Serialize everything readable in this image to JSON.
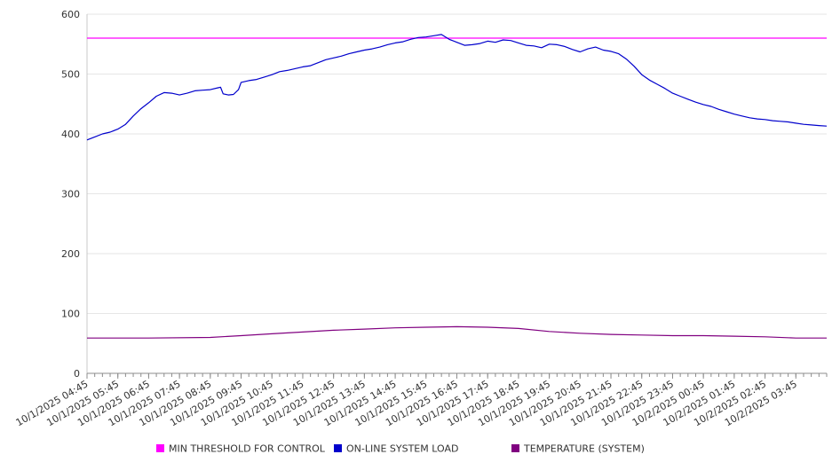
{
  "chart_data": {
    "type": "line",
    "title": "",
    "xlabel": "",
    "ylabel": "",
    "ylim": [
      0,
      600
    ],
    "y_ticks": [
      "0",
      "100",
      "200",
      "300",
      "400",
      "500",
      "600"
    ],
    "x_ticks": [
      "10/1/2025 04:45",
      "10/1/2025 05:45",
      "10/1/2025 06:45",
      "10/1/2025 07:45",
      "10/1/2025 08:45",
      "10/1/2025 09:45",
      "10/1/2025 10:45",
      "10/1/2025 11:45",
      "10/1/2025 12:45",
      "10/1/2025 13:45",
      "10/1/2025 14:45",
      "10/1/2025 15:45",
      "10/1/2025 16:45",
      "10/1/2025 17:45",
      "10/1/2025 18:45",
      "10/1/2025 19:45",
      "10/1/2025 20:45",
      "10/1/2025 21:45",
      "10/1/2025 22:45",
      "10/1/2025 23:45",
      "10/2/2025 00:45",
      "10/2/2025 01:45",
      "10/2/2025 02:45",
      "10/2/2025 03:45"
    ],
    "x_range": [
      "10/1/2025 04:45",
      "10/2/2025 04:45"
    ],
    "grid": true,
    "legend_position": "bottom",
    "series": [
      {
        "name": "MIN THRESHOLD FOR CONTROL",
        "color": "#ff00ff",
        "points": [
          [
            "10/1/2025 04:45",
            560
          ],
          [
            "10/2/2025 04:45",
            560
          ]
        ]
      },
      {
        "name": "ON-LINE SYSTEM LOAD",
        "color": "#0000cc",
        "points": [
          [
            "10/1/2025 04:45",
            390
          ],
          [
            "10/1/2025 05:00",
            395
          ],
          [
            "10/1/2025 05:15",
            400
          ],
          [
            "10/1/2025 05:30",
            403
          ],
          [
            "10/1/2025 05:45",
            408
          ],
          [
            "10/1/2025 06:00",
            416
          ],
          [
            "10/1/2025 06:15",
            430
          ],
          [
            "10/1/2025 06:30",
            442
          ],
          [
            "10/1/2025 06:45",
            452
          ],
          [
            "10/1/2025 07:00",
            463
          ],
          [
            "10/1/2025 07:15",
            469
          ],
          [
            "10/1/2025 07:30",
            468
          ],
          [
            "10/1/2025 07:45",
            465
          ],
          [
            "10/1/2025 08:00",
            468
          ],
          [
            "10/1/2025 08:15",
            472
          ],
          [
            "10/1/2025 08:30",
            473
          ],
          [
            "10/1/2025 08:45",
            474
          ],
          [
            "10/1/2025 09:00",
            477
          ],
          [
            "10/1/2025 09:05",
            478
          ],
          [
            "10/1/2025 09:10",
            467
          ],
          [
            "10/1/2025 09:20",
            465
          ],
          [
            "10/1/2025 09:30",
            466
          ],
          [
            "10/1/2025 09:40",
            474
          ],
          [
            "10/1/2025 09:45",
            486
          ],
          [
            "10/1/2025 10:00",
            489
          ],
          [
            "10/1/2025 10:15",
            491
          ],
          [
            "10/1/2025 10:30",
            495
          ],
          [
            "10/1/2025 10:45",
            499
          ],
          [
            "10/1/2025 11:00",
            504
          ],
          [
            "10/1/2025 11:15",
            506
          ],
          [
            "10/1/2025 11:30",
            509
          ],
          [
            "10/1/2025 11:45",
            512
          ],
          [
            "10/1/2025 12:00",
            514
          ],
          [
            "10/1/2025 12:15",
            519
          ],
          [
            "10/1/2025 12:30",
            524
          ],
          [
            "10/1/2025 12:45",
            527
          ],
          [
            "10/1/2025 13:00",
            530
          ],
          [
            "10/1/2025 13:15",
            534
          ],
          [
            "10/1/2025 13:30",
            537
          ],
          [
            "10/1/2025 13:45",
            540
          ],
          [
            "10/1/2025 14:00",
            542
          ],
          [
            "10/1/2025 14:15",
            545
          ],
          [
            "10/1/2025 14:30",
            549
          ],
          [
            "10/1/2025 14:45",
            552
          ],
          [
            "10/1/2025 15:00",
            554
          ],
          [
            "10/1/2025 15:15",
            558
          ],
          [
            "10/1/2025 15:30",
            561
          ],
          [
            "10/1/2025 15:45",
            562
          ],
          [
            "10/1/2025 16:00",
            564
          ],
          [
            "10/1/2025 16:15",
            566
          ],
          [
            "10/1/2025 16:30",
            558
          ],
          [
            "10/1/2025 16:45",
            553
          ],
          [
            "10/1/2025 17:00",
            548
          ],
          [
            "10/1/2025 17:15",
            549
          ],
          [
            "10/1/2025 17:30",
            551
          ],
          [
            "10/1/2025 17:45",
            555
          ],
          [
            "10/1/2025 18:00",
            553
          ],
          [
            "10/1/2025 18:15",
            557
          ],
          [
            "10/1/2025 18:30",
            556
          ],
          [
            "10/1/2025 18:45",
            552
          ],
          [
            "10/1/2025 19:00",
            548
          ],
          [
            "10/1/2025 19:15",
            547
          ],
          [
            "10/1/2025 19:30",
            544
          ],
          [
            "10/1/2025 19:45",
            550
          ],
          [
            "10/1/2025 20:00",
            549
          ],
          [
            "10/1/2025 20:15",
            546
          ],
          [
            "10/1/2025 20:30",
            541
          ],
          [
            "10/1/2025 20:45",
            537
          ],
          [
            "10/1/2025 21:00",
            542
          ],
          [
            "10/1/2025 21:15",
            545
          ],
          [
            "10/1/2025 21:30",
            540
          ],
          [
            "10/1/2025 21:45",
            538
          ],
          [
            "10/1/2025 22:00",
            534
          ],
          [
            "10/1/2025 22:15",
            525
          ],
          [
            "10/1/2025 22:30",
            513
          ],
          [
            "10/1/2025 22:45",
            499
          ],
          [
            "10/1/2025 23:00",
            490
          ],
          [
            "10/1/2025 23:15",
            483
          ],
          [
            "10/1/2025 23:30",
            476
          ],
          [
            "10/1/2025 23:45",
            468
          ],
          [
            "10/2/2025 00:00",
            463
          ],
          [
            "10/2/2025 00:15",
            458
          ],
          [
            "10/2/2025 00:30",
            453
          ],
          [
            "10/2/2025 00:45",
            449
          ],
          [
            "10/2/2025 01:00",
            446
          ],
          [
            "10/2/2025 01:15",
            441
          ],
          [
            "10/2/2025 01:30",
            437
          ],
          [
            "10/2/2025 01:45",
            433
          ],
          [
            "10/2/2025 02:00",
            430
          ],
          [
            "10/2/2025 02:15",
            427
          ],
          [
            "10/2/2025 02:30",
            425
          ],
          [
            "10/2/2025 02:45",
            424
          ],
          [
            "10/2/2025 03:00",
            422
          ],
          [
            "10/2/2025 03:15",
            421
          ],
          [
            "10/2/2025 03:30",
            420
          ],
          [
            "10/2/2025 03:45",
            418
          ],
          [
            "10/2/2025 04:00",
            416
          ],
          [
            "10/2/2025 04:15",
            415
          ],
          [
            "10/2/2025 04:30",
            414
          ],
          [
            "10/2/2025 04:45",
            413
          ]
        ]
      },
      {
        "name": "TEMPERATURE (SYSTEM)",
        "color": "#800080",
        "points": [
          [
            "10/1/2025 04:45",
            59
          ],
          [
            "10/1/2025 06:45",
            59
          ],
          [
            "10/1/2025 08:45",
            60
          ],
          [
            "10/1/2025 09:45",
            63
          ],
          [
            "10/1/2025 10:45",
            66
          ],
          [
            "10/1/2025 11:45",
            69
          ],
          [
            "10/1/2025 12:45",
            72
          ],
          [
            "10/1/2025 13:45",
            74
          ],
          [
            "10/1/2025 14:45",
            76
          ],
          [
            "10/1/2025 15:45",
            77
          ],
          [
            "10/1/2025 16:45",
            78
          ],
          [
            "10/1/2025 17:45",
            77
          ],
          [
            "10/1/2025 18:45",
            75
          ],
          [
            "10/1/2025 19:45",
            70
          ],
          [
            "10/1/2025 20:45",
            67
          ],
          [
            "10/1/2025 21:45",
            65
          ],
          [
            "10/1/2025 22:45",
            64
          ],
          [
            "10/1/2025 23:45",
            63
          ],
          [
            "10/2/2025 00:45",
            63
          ],
          [
            "10/2/2025 01:45",
            62
          ],
          [
            "10/2/2025 02:45",
            61
          ],
          [
            "10/2/2025 03:45",
            59
          ],
          [
            "10/2/2025 04:45",
            59
          ]
        ]
      }
    ]
  }
}
